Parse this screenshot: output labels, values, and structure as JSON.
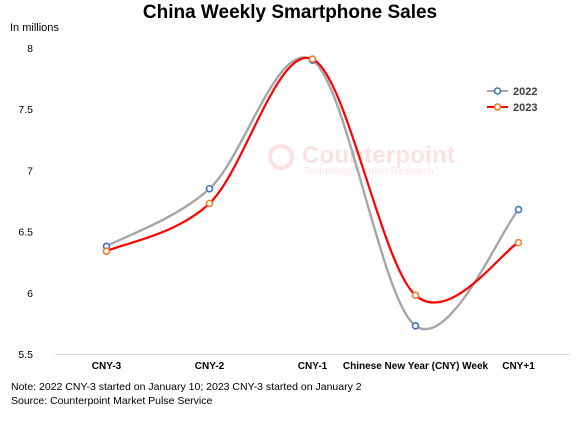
{
  "chart_data": {
    "type": "line",
    "title": "China Weekly Smartphone Sales",
    "ylabel": "In millions",
    "xlabel": "",
    "categories": [
      "CNY-3",
      "CNY-2",
      "CNY-1",
      "Chinese New Year (CNY) Week",
      "CNY+1"
    ],
    "series": [
      {
        "name": "2022",
        "values": [
          6.38,
          6.85,
          7.9,
          5.73,
          6.68
        ],
        "color": "#a6a6a6",
        "marker_color": "#4472c4"
      },
      {
        "name": "2023",
        "values": [
          6.34,
          6.73,
          7.91,
          5.98,
          6.41
        ],
        "color": "#ff0000",
        "marker_color": "#ed7d31"
      }
    ],
    "ylim": [
      5.5,
      8
    ],
    "yticks": [
      "5.5",
      "6",
      "6.5",
      "7",
      "7.5",
      "8"
    ],
    "grid": false,
    "legend": "right",
    "smooth": true
  },
  "watermark": {
    "brand": "Counterpoint",
    "tagline": "Technology Market Research"
  },
  "notes": {
    "line1": "Note: 2022 CNY-3 started on January 10; 2023 CNY-3 started on January 2",
    "line2": "Source: Counterpoint Market Pulse Service"
  }
}
